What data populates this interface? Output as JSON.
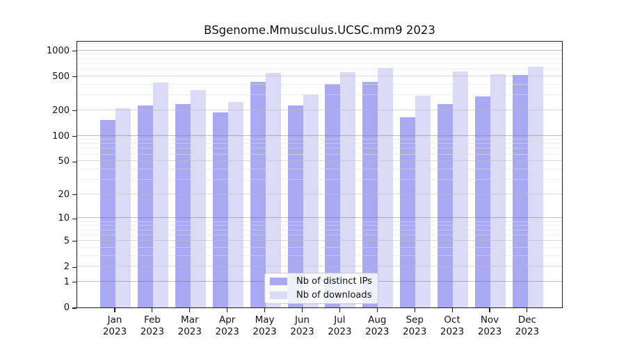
{
  "title": "BSgenome.Mmusculus.UCSC.mm9 2023",
  "colors": {
    "distinct_ips_bar": "#a9a9f3",
    "downloads_bar": "#dbdbf8",
    "axis": "#1a1a1a",
    "grid_decade": "#a8a8a8",
    "grid_minor": "#ededed",
    "background": "#ffffff"
  },
  "legend": {
    "position": "bottom-center",
    "items": [
      {
        "label": "Nb of distinct IPs",
        "color": "#a9a9f3"
      },
      {
        "label": "Nb of downloads",
        "color": "#dbdbf8"
      }
    ]
  },
  "chart_data": {
    "type": "bar",
    "title": "BSgenome.Mmusculus.UCSC.mm9 2023",
    "xlabel": "",
    "ylabel": "",
    "yscale": "log10(value+1)",
    "ylim": [
      0,
      1311
    ],
    "grid": true,
    "yticks": [
      0,
      1,
      2,
      5,
      10,
      20,
      50,
      100,
      200,
      500,
      1000
    ],
    "categories": [
      "Jan 2023",
      "Feb 2023",
      "Mar 2023",
      "Apr 2023",
      "May 2023",
      "Jun 2023",
      "Jul 2023",
      "Aug 2023",
      "Sep 2023",
      "Oct 2023",
      "Nov 2023",
      "Dec 2023"
    ],
    "series": [
      {
        "name": "Nb of distinct IPs",
        "color": "#a9a9f3",
        "values": [
          152,
          225,
          237,
          189,
          428,
          228,
          403,
          425,
          165,
          236,
          289,
          515
        ]
      },
      {
        "name": "Nb of downloads",
        "color": "#dbdbf8",
        "values": [
          210,
          417,
          345,
          248,
          545,
          308,
          560,
          625,
          293,
          565,
          522,
          650
        ]
      }
    ]
  }
}
